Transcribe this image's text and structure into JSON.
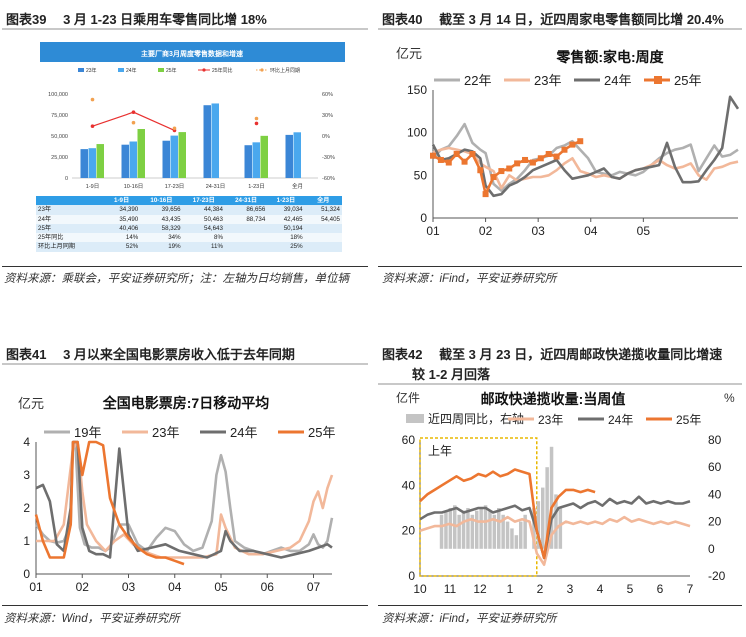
{
  "panels": [
    {
      "title": "图表39　 3 月 1-23 日乘用车零售同比增 18%",
      "source": "资料来源：乘联会，平安证券研究所；注：左轴为日均销售，单位辆"
    },
    {
      "title": "图表40　 截至 3 月 14 日，近四周家电零售额同比增 20.4%",
      "source": "资料来源：iFind，平安证券研究所"
    },
    {
      "title": "图表41　 3 月以来全国电影票房收入低于去年同期",
      "source": "资料来源：Wind，平安证券研究所"
    },
    {
      "title": "图表42　 截至 3 月 23 日，近四周邮政快递揽收量同比增速",
      "title2": "较 1-2 月回落",
      "source": "资料来源：iFind，平安证券研究所"
    }
  ],
  "colors": {
    "y22": "#b0b0b0",
    "y23": "#f2b89a",
    "y24": "#6e6e6e",
    "y25": "#ec7630",
    "bar23": "#3b86d6",
    "bar24": "#4aa8ee",
    "bar25": "#7ed043",
    "yoy": "#e8302f",
    "mom": "#f2a150",
    "tblhead": "#2e9de6",
    "highlight": "#e8b800"
  },
  "chart_data": [
    {
      "type": "bar",
      "title": "主要厂商3月周度零售数据和增速",
      "legend": [
        "23年",
        "24年",
        "25年",
        "25年同比",
        "环比上月同期"
      ],
      "categories": [
        "1-9日",
        "10-16日",
        "17-23日",
        "24-31日",
        "1-23日",
        "全月"
      ],
      "series": [
        {
          "name": "23年",
          "values": [
            34390,
            39656,
            44384,
            86656,
            39034,
            51324
          ]
        },
        {
          "name": "24年",
          "values": [
            35490,
            43435,
            50463,
            88734,
            42465,
            54405
          ]
        },
        {
          "name": "25年",
          "values": [
            40406,
            58329,
            54643,
            null,
            50194,
            null
          ]
        }
      ],
      "line_series": [
        {
          "name": "25年同比",
          "axis": "right",
          "values": [
            "14%",
            "34%",
            "8%",
            "",
            "18%",
            ""
          ],
          "numeric": [
            14,
            34,
            8,
            null,
            18,
            null
          ]
        },
        {
          "name": "环比上月同期",
          "axis": "right",
          "values": [
            "52%",
            "19%",
            "11%",
            "",
            "25%",
            ""
          ],
          "numeric": [
            52,
            19,
            11,
            null,
            25,
            null
          ]
        }
      ],
      "left_ticks": [
        "100,000",
        "75,000",
        "50,000",
        "25,000",
        "0"
      ],
      "ylim_left": [
        0,
        100000
      ],
      "right_ticks": [
        "60%",
        "30%",
        "0%",
        "-30%",
        "-60%"
      ],
      "ylim_right": [
        -60,
        60
      ],
      "table_header": [
        "",
        "1-9日",
        "10-16日",
        "17-23日",
        "24-31日",
        "1-23日",
        "全月"
      ],
      "table_rows": [
        [
          "23年",
          "34,390",
          "39,656",
          "44,384",
          "86,656",
          "39,034",
          "51,324"
        ],
        [
          "24年",
          "35,490",
          "43,435",
          "50,463",
          "88,734",
          "42,465",
          "54,405"
        ],
        [
          "25年",
          "40,406",
          "58,329",
          "54,643",
          "",
          "50,194",
          ""
        ],
        [
          "25年同比",
          "14%",
          "34%",
          "8%",
          "",
          "18%",
          ""
        ],
        [
          "环比上月同期",
          "52%",
          "19%",
          "11%",
          "",
          "25%",
          ""
        ]
      ]
    },
    {
      "type": "line",
      "title": "零售额:家电:周度",
      "ylabel": "亿元",
      "ylim": [
        0,
        150
      ],
      "yticks": [
        "0",
        "50",
        "100",
        "150"
      ],
      "xticks": [
        "01",
        "02",
        "03",
        "04",
        "05"
      ],
      "series": [
        {
          "name": "22年",
          "x": [
            0,
            0.15,
            0.3,
            0.45,
            0.6,
            0.75,
            0.9,
            1.0,
            1.15,
            1.3,
            1.45,
            1.6,
            1.75,
            1.9,
            2.05,
            2.2,
            2.35,
            2.5,
            2.65,
            2.8,
            2.95,
            3.1,
            3.25,
            3.4,
            3.55,
            3.7,
            3.85,
            4.0,
            4.15,
            4.3,
            4.45,
            4.6,
            4.75,
            4.9,
            5.05,
            5.2,
            5.35,
            5.5,
            5.65,
            5.8
          ],
          "values": [
            70,
            80,
            84,
            96,
            110,
            88,
            80,
            76,
            40,
            32,
            40,
            46,
            56,
            68,
            70,
            73,
            82,
            85,
            90,
            80,
            70,
            54,
            52,
            50,
            54,
            52,
            50,
            54,
            62,
            70,
            76,
            80,
            82,
            86,
            55,
            70,
            85,
            72,
            74,
            80
          ]
        },
        {
          "name": "23年",
          "x": [
            0,
            0.15,
            0.3,
            0.45,
            0.6,
            0.75,
            0.9,
            1.0,
            1.15,
            1.3,
            1.45,
            1.6,
            1.75,
            1.9,
            2.05,
            2.2,
            2.35,
            2.5,
            2.65,
            2.8,
            2.95,
            3.1,
            3.25,
            3.4,
            3.55,
            3.7,
            3.85,
            4.0,
            4.15,
            4.3,
            4.45,
            4.6,
            4.75,
            4.9,
            5.05,
            5.2,
            5.35,
            5.5,
            5.65,
            5.8
          ],
          "values": [
            77,
            80,
            82,
            80,
            78,
            75,
            64,
            60,
            55,
            35,
            50,
            44,
            46,
            48,
            48,
            50,
            56,
            64,
            70,
            55,
            52,
            48,
            50,
            48,
            46,
            52,
            56,
            58,
            62,
            68,
            62,
            58,
            60,
            64,
            50,
            45,
            58,
            60,
            64,
            66
          ]
        },
        {
          "name": "24年",
          "x": [
            0,
            0.15,
            0.3,
            0.45,
            0.6,
            0.75,
            0.9,
            1.0,
            1.15,
            1.3,
            1.45,
            1.6,
            1.75,
            1.9,
            2.05,
            2.2,
            2.35,
            2.5,
            2.65,
            2.8,
            2.95,
            3.1,
            3.25,
            3.4,
            3.55,
            3.7,
            3.85,
            4.0,
            4.15,
            4.3,
            4.45,
            4.6,
            4.75,
            4.9,
            5.05,
            5.2,
            5.35,
            5.5,
            5.65,
            5.8
          ],
          "values": [
            86,
            68,
            70,
            75,
            80,
            78,
            70,
            38,
            26,
            28,
            38,
            42,
            48,
            56,
            60,
            64,
            68,
            56,
            46,
            48,
            50,
            54,
            58,
            48,
            46,
            52,
            56,
            58,
            60,
            62,
            88,
            60,
            42,
            42,
            43,
            56,
            68,
            82,
            142,
            128
          ]
        },
        {
          "name": "25年",
          "x": [
            0,
            0.15,
            0.3,
            0.45,
            0.6,
            0.75,
            0.9,
            1.0,
            1.15,
            1.3,
            1.45,
            1.6,
            1.75,
            1.9,
            2.05,
            2.2,
            2.35,
            2.5,
            2.65,
            2.8
          ],
          "values": [
            73,
            68,
            65,
            75,
            66,
            75,
            56,
            28,
            48,
            55,
            58,
            64,
            68,
            65,
            70,
            75,
            72,
            80,
            86,
            90
          ]
        }
      ]
    },
    {
      "type": "line",
      "title": "全国电影票房:7日移动平均",
      "ylabel": "亿元",
      "ylim": [
        0,
        4
      ],
      "yticks": [
        "0",
        "1",
        "2",
        "3",
        "4"
      ],
      "xticks": [
        "01",
        "02",
        "03",
        "04",
        "05",
        "06",
        "07"
      ],
      "series": [
        {
          "name": "19年",
          "x": [
            0,
            0.15,
            0.3,
            0.45,
            0.6,
            0.75,
            0.8,
            0.85,
            0.95,
            1.05,
            1.2,
            1.35,
            1.5,
            1.6,
            1.8,
            2.0,
            2.2,
            2.4,
            2.6,
            2.8,
            3.0,
            3.2,
            3.4,
            3.6,
            3.8,
            3.9,
            4.0,
            4.1,
            4.2,
            4.3,
            4.5,
            4.7,
            4.9,
            5.1,
            5.3,
            5.5,
            5.7,
            5.9,
            6.0,
            6.1,
            6.2,
            6.3,
            6.4
          ],
          "values": [
            1.5,
            1.2,
            1.0,
            0.95,
            1.0,
            1.5,
            4.0,
            4.0,
            1.4,
            0.9,
            0.8,
            0.8,
            0.7,
            0.8,
            1.5,
            1.5,
            0.9,
            0.7,
            1.1,
            1.4,
            1.3,
            0.9,
            0.7,
            0.8,
            1.6,
            3.0,
            3.6,
            3.1,
            2.0,
            1.0,
            0.8,
            0.7,
            0.6,
            0.7,
            0.8,
            0.7,
            0.7,
            0.9,
            1.2,
            0.9,
            0.8,
            1.0,
            1.7
          ]
        },
        {
          "name": "23年",
          "x": [
            0,
            0.2,
            0.4,
            0.6,
            0.8,
            0.9,
            1.0,
            1.1,
            1.3,
            1.5,
            1.7,
            1.9,
            2.1,
            2.3,
            2.5,
            2.7,
            3.0,
            3.3,
            3.6,
            3.9,
            4.0,
            4.1,
            4.3,
            4.6,
            4.9,
            5.2,
            5.5,
            5.7,
            5.9,
            6.0,
            6.1,
            6.2,
            6.3,
            6.4
          ],
          "values": [
            1.0,
            1.0,
            1.0,
            1.5,
            3.8,
            4.0,
            2.5,
            1.5,
            1.0,
            0.7,
            1.0,
            1.2,
            0.9,
            0.7,
            0.6,
            0.5,
            0.5,
            0.5,
            0.5,
            0.6,
            1.8,
            1.4,
            0.8,
            0.6,
            0.6,
            0.7,
            0.8,
            1.0,
            1.6,
            2.2,
            2.5,
            2.0,
            2.6,
            3.0
          ]
        },
        {
          "name": "24年",
          "x": [
            0,
            0.15,
            0.3,
            0.45,
            0.6,
            0.75,
            0.8,
            0.9,
            1.0,
            1.15,
            1.3,
            1.45,
            1.6,
            1.8,
            2.0,
            2.2,
            2.5,
            2.8,
            3.1,
            3.4,
            3.7,
            4.0,
            4.1,
            4.2,
            4.4,
            4.7,
            5.0,
            5.3,
            5.6,
            5.9,
            6.1,
            6.3,
            6.4
          ],
          "values": [
            2.6,
            2.7,
            2.2,
            0.9,
            0.7,
            2.0,
            4.0,
            4.0,
            1.4,
            0.7,
            0.6,
            0.6,
            0.5,
            3.8,
            1.2,
            0.7,
            0.8,
            0.9,
            0.7,
            0.6,
            0.5,
            0.7,
            1.3,
            1.0,
            0.7,
            0.7,
            0.6,
            0.5,
            0.6,
            0.7,
            0.8,
            0.9,
            0.8
          ]
        },
        {
          "name": "25年",
          "x": [
            0,
            0.15,
            0.3,
            0.45,
            0.6,
            0.75,
            0.8,
            0.9,
            1.0,
            1.15,
            1.3,
            1.45,
            1.6,
            1.8,
            2.0,
            2.2,
            2.4,
            2.6,
            2.8,
            3.0,
            3.2
          ],
          "values": [
            1.8,
            1.0,
            0.5,
            0.5,
            0.5,
            1.5,
            4.0,
            4.0,
            3.0,
            4.0,
            4.0,
            3.9,
            2.3,
            1.5,
            1.1,
            0.8,
            0.6,
            0.5,
            0.5,
            0.4,
            0.3
          ]
        }
      ]
    },
    {
      "type": "line",
      "title": "邮政快递揽收量:当周值",
      "ylabel": "亿件",
      "ylabel_right": "%",
      "ylim": [
        0,
        60
      ],
      "yticks": [
        "0",
        "20",
        "40",
        "60"
      ],
      "ylim_right": [
        -20,
        80
      ],
      "yticks_right": [
        "-20",
        "0",
        "20",
        "40",
        "60",
        "80"
      ],
      "xticks": [
        "10",
        "11",
        "12",
        "1",
        "2",
        "3",
        "4",
        "5",
        "6",
        "7"
      ],
      "annotation": "上年",
      "series": [
        {
          "name": "近四周同比，右轴",
          "kind": "bar",
          "x": [
            0.9,
            1.1,
            1.3,
            1.5,
            1.7,
            1.9,
            2.1,
            2.3,
            2.5,
            2.7,
            2.9,
            3.1,
            3.3,
            3.5,
            3.7,
            3.9,
            4.1,
            4.3,
            4.5,
            4.7,
            5.1,
            5.3,
            5.5,
            5.7,
            5.9,
            6.1,
            6.3
          ],
          "values": [
            25,
            28,
            30,
            32,
            25,
            28,
            30,
            25,
            28,
            30,
            32,
            28,
            25,
            30,
            25,
            20,
            15,
            10,
            20,
            25,
            30,
            35,
            45,
            60,
            75,
            40,
            30
          ]
        },
        {
          "name": "23年",
          "x": [
            0,
            0.5,
            1,
            1.5,
            2,
            2.5,
            3,
            3.5,
            4,
            4.5,
            5,
            5.5,
            6,
            6.5,
            7,
            7.5,
            8,
            8.5,
            9,
            9.5,
            10,
            10.5,
            11,
            11.5,
            12,
            12.5,
            13,
            13.5,
            14,
            14.5,
            15,
            15.5,
            16,
            16.5,
            17,
            17.5,
            18,
            18.5
          ],
          "values": [
            20,
            21,
            22,
            22,
            23,
            22,
            24,
            25,
            24,
            24,
            25,
            24,
            26,
            24,
            25,
            24,
            10,
            5,
            18,
            22,
            24,
            23,
            24,
            23,
            24,
            23,
            25,
            24,
            26,
            24,
            25,
            24,
            23,
            24,
            23,
            24,
            23,
            22
          ]
        },
        {
          "name": "24年",
          "x": [
            0,
            0.5,
            1,
            1.5,
            2,
            2.5,
            3,
            3.5,
            4,
            4.5,
            5,
            5.5,
            6,
            6.5,
            7,
            7.5,
            8,
            8.5,
            9,
            9.5,
            10,
            10.5,
            11,
            11.5,
            12,
            12.5,
            13,
            13.5,
            14,
            14.5,
            15,
            15.5,
            16,
            16.5,
            17,
            17.5,
            18,
            18.5
          ],
          "values": [
            25,
            27,
            28,
            28,
            29,
            30,
            28,
            29,
            30,
            30,
            28,
            29,
            30,
            31,
            29,
            30,
            20,
            8,
            25,
            30,
            31,
            32,
            30,
            32,
            33,
            31,
            34,
            32,
            33,
            32,
            35,
            32,
            33,
            32,
            33,
            32,
            32,
            33
          ]
        },
        {
          "name": "25年",
          "x": [
            0,
            0.5,
            1,
            1.5,
            2,
            2.5,
            3,
            3.5,
            4,
            4.5,
            5,
            5.5,
            6,
            6.5,
            7,
            7.5,
            8,
            8.5,
            9,
            9.5,
            10,
            10.5,
            11,
            11.5,
            12
          ],
          "values": [
            33,
            36,
            38,
            40,
            42,
            44,
            42,
            43,
            45,
            44,
            46,
            44,
            45,
            47,
            46,
            45,
            20,
            8,
            30,
            35,
            38,
            38,
            37,
            38,
            37
          ]
        }
      ]
    }
  ]
}
